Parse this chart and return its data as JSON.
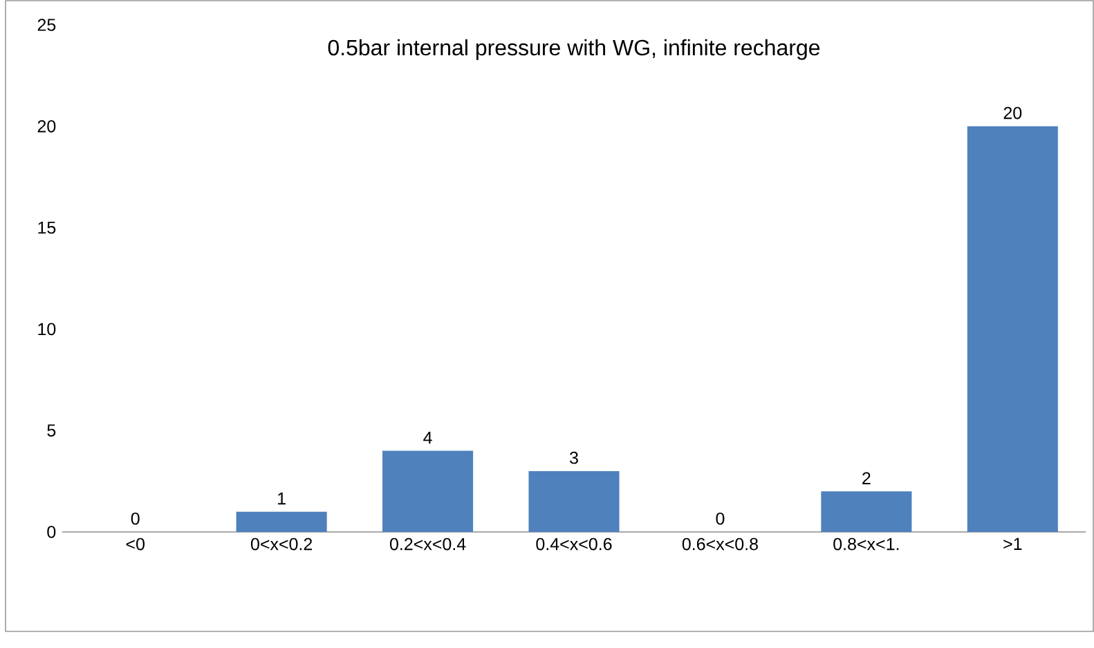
{
  "chart_data": {
    "type": "bar",
    "title": "0.5bar internal pressure with WG, infinite   recharge",
    "categories": [
      "<0",
      "0<x<0.2",
      "0.2<x<0.4",
      "0.4<x<0.6",
      "0.6<x<0.8",
      "0.8<x<1.",
      ">1"
    ],
    "values": [
      0,
      1,
      4,
      3,
      0,
      2,
      20
    ],
    "color": "#4f81bd",
    "ylim": [
      0,
      25
    ],
    "yticks": [
      0,
      5,
      10,
      15,
      20,
      25
    ],
    "data_labels": true
  }
}
